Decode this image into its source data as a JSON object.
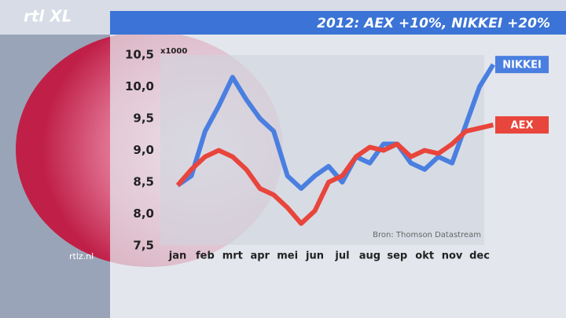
{
  "logo": "rtl XL",
  "site": "rtlz.nl",
  "chart_data": {
    "type": "line",
    "title": "2012: AEX +10%, NIKKEI +20%",
    "y_unit": "x1000",
    "source": "Bron: Thomson Datastream",
    "categories": [
      "jan",
      null,
      "feb",
      null,
      "mrt",
      null,
      "apr",
      null,
      "mei",
      null,
      "jun",
      null,
      "jul",
      null,
      "aug",
      null,
      "sep",
      null,
      "okt",
      null,
      "nov",
      null,
      "dec",
      null
    ],
    "series": [
      {
        "name": "NIKKEI",
        "color": "#4a7fe0",
        "values": [
          8.45,
          8.6,
          9.3,
          9.7,
          10.15,
          9.8,
          9.5,
          9.3,
          8.6,
          8.4,
          8.6,
          8.75,
          8.5,
          8.9,
          8.8,
          9.1,
          9.1,
          8.8,
          8.7,
          8.9,
          8.8,
          9.4,
          10.0,
          10.35
        ]
      },
      {
        "name": "AEX",
        "color": "#e8453c",
        "values": [
          8.45,
          8.7,
          8.9,
          9.0,
          8.9,
          8.7,
          8.4,
          8.3,
          8.1,
          7.85,
          8.05,
          8.5,
          8.6,
          8.9,
          9.05,
          9.0,
          9.1,
          8.9,
          9.0,
          8.95,
          9.1,
          9.3,
          9.35,
          9.4
        ]
      }
    ],
    "ylim": [
      7.5,
      10.5
    ],
    "yticks": [
      {
        "value": 7.5,
        "label": "7,5"
      },
      {
        "value": 8.0,
        "label": "8,0"
      },
      {
        "value": 8.5,
        "label": "8,5"
      },
      {
        "value": 9.0,
        "label": "9,0"
      },
      {
        "value": 9.5,
        "label": "9,5"
      },
      {
        "value": 10.0,
        "label": "10,0"
      },
      {
        "value": 10.5,
        "label": "10,5"
      }
    ]
  }
}
